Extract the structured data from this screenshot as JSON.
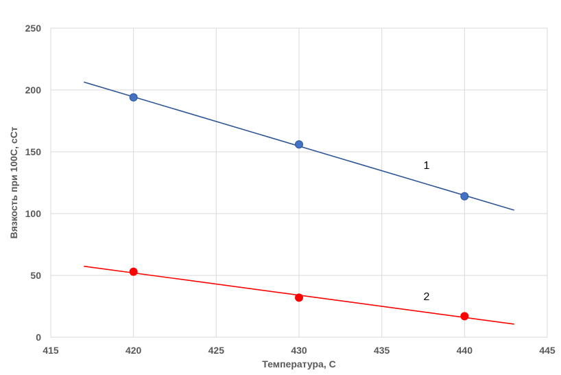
{
  "chart_data": {
    "type": "scatter",
    "title": "",
    "xlabel": "Температура, С",
    "ylabel": "Вязкость при 100С, сСт",
    "xlim": [
      415,
      445
    ],
    "ylim": [
      0,
      250
    ],
    "x_ticks": [
      "415",
      "420",
      "425",
      "430",
      "435",
      "440",
      "445"
    ],
    "y_ticks": [
      "0",
      "50",
      "100",
      "150",
      "200",
      "250"
    ],
    "grid": true,
    "series": [
      {
        "label": "1",
        "color": "#4472c4",
        "line_color": "#2f5597",
        "x": [
          420,
          430,
          440
        ],
        "y": [
          194,
          156,
          114
        ],
        "trendline": {
          "x": [
            417,
            443
          ],
          "y": [
            206.4,
            102.8
          ]
        }
      },
      {
        "label": "2",
        "color": "#ff0000",
        "line_color": "#ff0000",
        "x": [
          420,
          430,
          440
        ],
        "y": [
          53,
          32,
          17
        ],
        "trendline": {
          "x": [
            417,
            443
          ],
          "y": [
            57.4,
            10.6
          ]
        }
      }
    ]
  }
}
